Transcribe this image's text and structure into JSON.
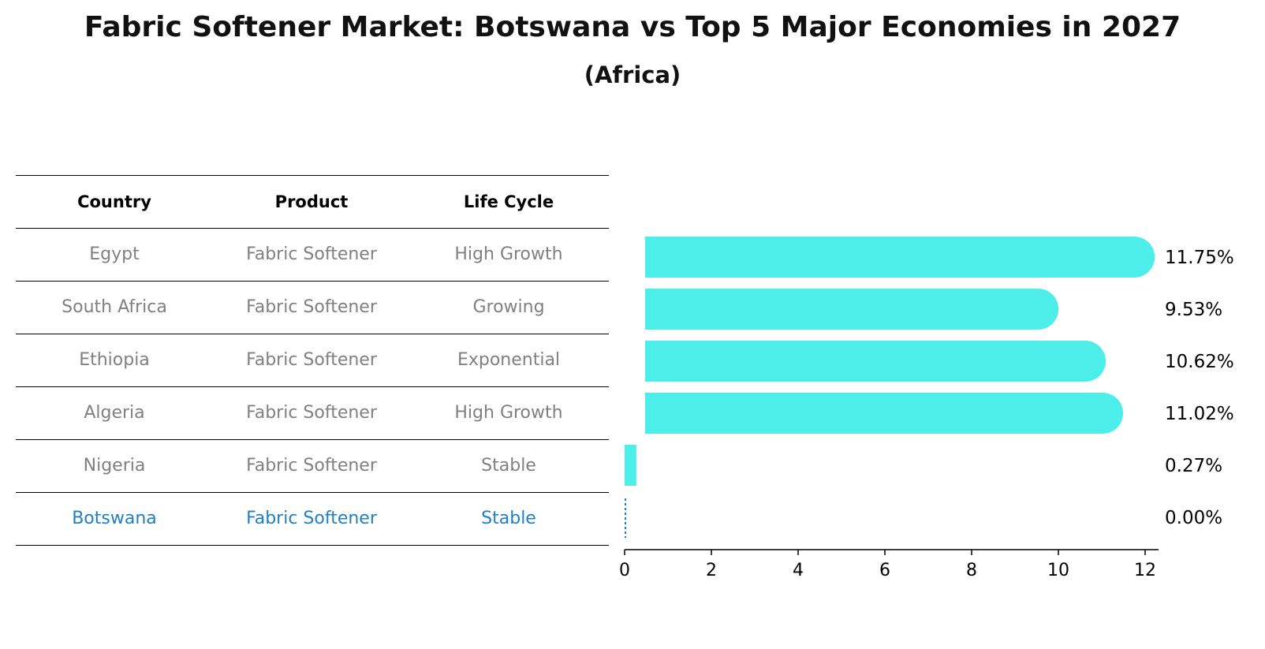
{
  "title": "Fabric Softener Market: Botswana vs Top 5 Major Economies in 2027",
  "subtitle": "(Africa)",
  "table": {
    "headers": [
      "Country",
      "Product",
      "Life Cycle"
    ],
    "rows": [
      {
        "country": "Egypt",
        "product": "Fabric Softener",
        "life_cycle": "High Growth"
      },
      {
        "country": "South Africa",
        "product": "Fabric Softener",
        "life_cycle": "Growing"
      },
      {
        "country": "Ethiopia",
        "product": "Fabric Softener",
        "life_cycle": "Exponential"
      },
      {
        "country": "Algeria",
        "product": "Fabric Softener",
        "life_cycle": "High Growth"
      },
      {
        "country": "Nigeria",
        "product": "Fabric Softener",
        "life_cycle": "Stable"
      },
      {
        "country": "Botswana",
        "product": "Fabric Softener",
        "life_cycle": "Stable"
      }
    ],
    "highlight_row": "Botswana"
  },
  "chart_data": {
    "type": "bar",
    "orientation": "horizontal",
    "categories": [
      "Egypt",
      "South Africa",
      "Ethiopia",
      "Algeria",
      "Nigeria",
      "Botswana"
    ],
    "values": [
      11.75,
      9.53,
      10.62,
      11.02,
      0.27,
      0.0
    ],
    "value_labels": [
      "11.75%",
      "9.53%",
      "10.62%",
      "11.02%",
      "0.27%",
      "0.00%"
    ],
    "xlim": [
      0,
      12.3
    ],
    "xticks": [
      0,
      2,
      4,
      6,
      8,
      10,
      12
    ],
    "grid": false,
    "colors": {
      "bar": "#4deeea",
      "highlight": "#1f7fc4"
    }
  }
}
